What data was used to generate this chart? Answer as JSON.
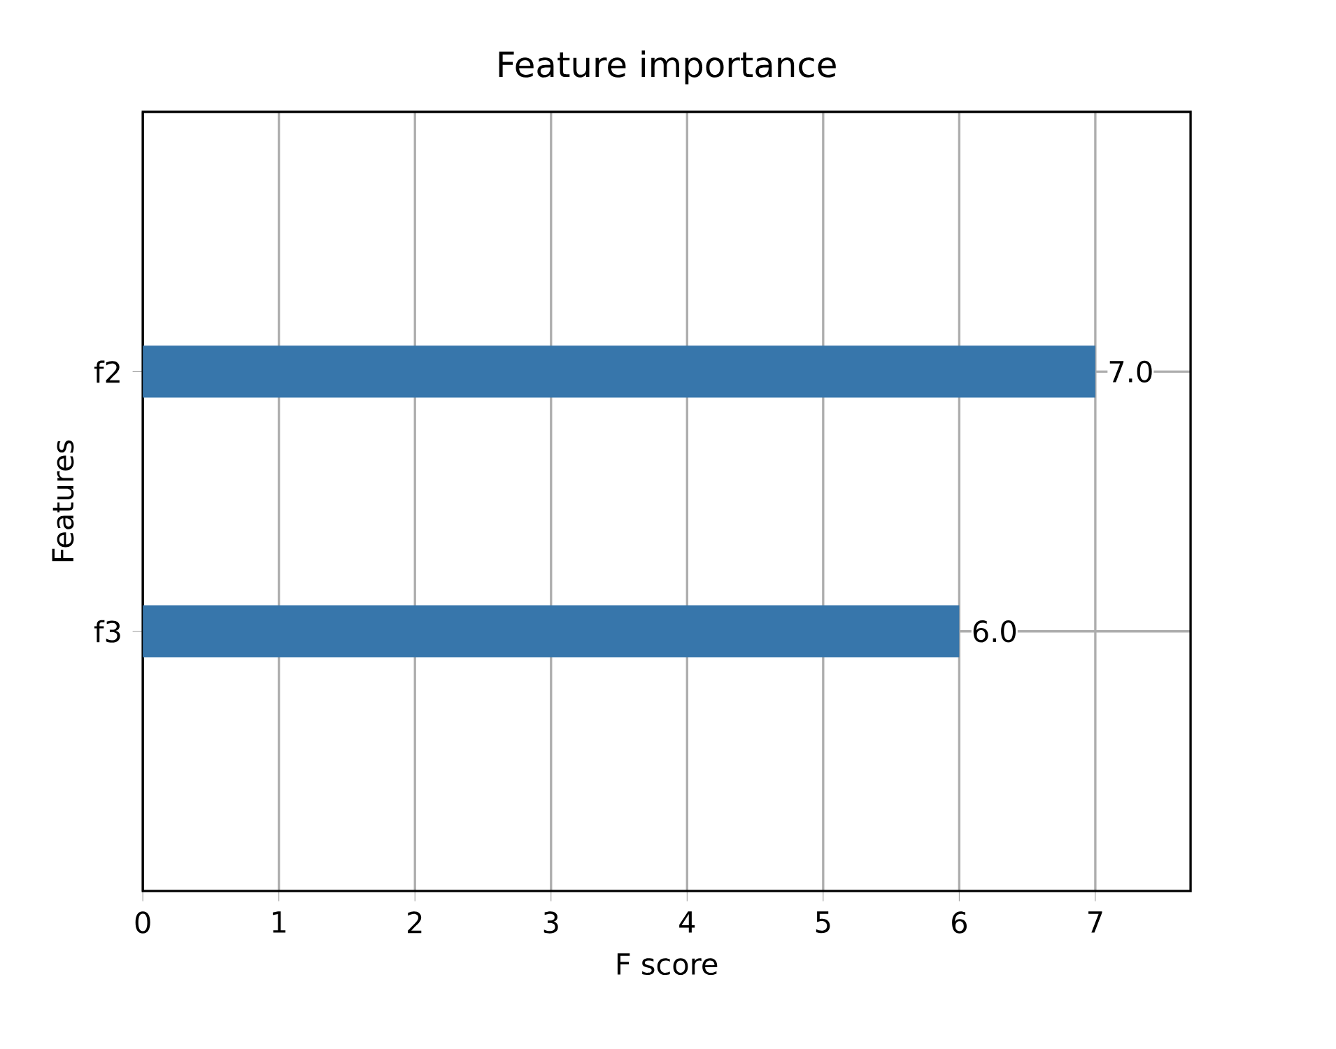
{
  "chart_data": {
    "type": "bar",
    "orientation": "horizontal",
    "title": "Feature importance",
    "xlabel": "F score",
    "ylabel": "Features",
    "categories": [
      "f2",
      "f3"
    ],
    "values": [
      7,
      6
    ],
    "value_labels": [
      "7.0",
      "6.0"
    ],
    "color": "#3776ab",
    "xlim": [
      0,
      7.7
    ],
    "xticks": [
      0,
      1,
      2,
      3,
      4,
      5,
      6,
      7
    ],
    "grid": true
  }
}
